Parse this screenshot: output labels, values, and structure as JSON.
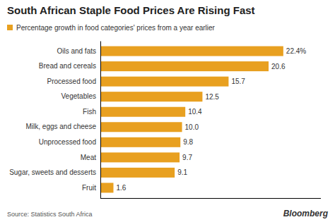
{
  "chart_data": {
    "type": "bar",
    "orientation": "horizontal",
    "title": "South African Staple Food Prices Are Rising Fast",
    "subtitle": "Percentage growth in food categories' prices from a year earlier",
    "categories": [
      "Fruit",
      "Sugar, sweets and desserts",
      "Meat",
      "Unprocessed food",
      "Milk, eggs and cheese",
      "Fish",
      "Vegetables",
      "Processed food",
      "Bread and cereals",
      "Oils and fats"
    ],
    "values": [
      1.6,
      9.1,
      9.7,
      9.8,
      10.0,
      10.4,
      12.5,
      15.7,
      20.6,
      22.4
    ],
    "value_labels": [
      "1.6",
      "9.1",
      "9.7",
      "9.8",
      "10.0",
      "10.4",
      "12.5",
      "15.7",
      "20.6",
      "22.4%"
    ],
    "data_labels": true,
    "color": "#E8A020",
    "xlim": [
      0,
      27
    ],
    "tick_labels": "y",
    "grid": false,
    "annotations": [
      "Source: Statistics South Africa",
      "Bloomberg"
    ]
  }
}
